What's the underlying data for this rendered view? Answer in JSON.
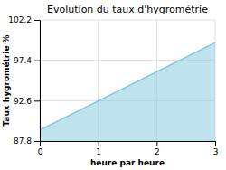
{
  "chart_data": {
    "type": "area",
    "title": "Evolution du taux d'hygrométrie",
    "xlabel": "heure par heure",
    "ylabel": "Taux hygrométrie %",
    "x": [
      0,
      3
    ],
    "series": [
      {
        "values": [
          89.1,
          99.5
        ],
        "color": "#7fc8e0"
      }
    ],
    "xlim": [
      0,
      3
    ],
    "ylim": [
      87.8,
      102.2
    ],
    "xticks": [
      0,
      1,
      2,
      3
    ],
    "yticks": [
      87.8,
      92.6,
      97.4,
      102.2
    ],
    "grid": true
  }
}
